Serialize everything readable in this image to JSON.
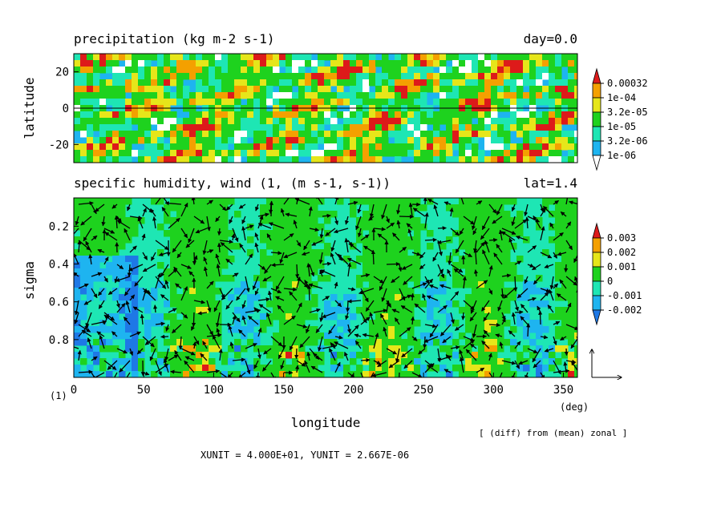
{
  "chart_data": [
    {
      "type": "heatmap",
      "title": "precipitation (kg m-2 s-1)",
      "time_label": "day=0.0",
      "ylabel": "latitude",
      "xlim": [
        0,
        360
      ],
      "ylim": [
        -30,
        30
      ],
      "yticks": [
        "20",
        "0",
        "-20"
      ],
      "ytick_values": [
        20,
        0,
        -20
      ],
      "reference_line_y": 0,
      "colorbar": {
        "labels": [
          "0.00032",
          "1e-04",
          "3.2e-05",
          "1e-05",
          "3.2e-06",
          "1e-06"
        ],
        "colors": [
          "#dd1a1a",
          "#f4a000",
          "#e6e61a",
          "#1ed21e",
          "#1ee6b4",
          "#1eb4f0",
          "#ffffff"
        ]
      }
    },
    {
      "type": "heatmap",
      "title": "specific humidity, wind (1, (m s-1, s-1))",
      "slice_label": "lat=1.4",
      "xlabel": "longitude",
      "ylabel": "sigma",
      "xlim": [
        0,
        360
      ],
      "ylim": [
        1.0,
        0.05
      ],
      "xticks": [
        "0",
        "50",
        "100",
        "150",
        "200",
        "250",
        "300",
        "350"
      ],
      "xtick_values": [
        0,
        50,
        100,
        150,
        200,
        250,
        300,
        350
      ],
      "yticks": [
        "0.2",
        "0.4",
        "0.6",
        "0.8"
      ],
      "ytick_values": [
        0.2,
        0.4,
        0.6,
        0.8
      ],
      "x_unit_label": "(deg)",
      "y_unit_label": "(1)",
      "colorbar": {
        "labels": [
          "0.003",
          "0.002",
          "0.001",
          "0",
          "-0.001",
          "-0.002"
        ],
        "colors": [
          "#dd1a1a",
          "#f4a000",
          "#e6e61a",
          "#1ed21e",
          "#1ee6b4",
          "#1eb4f0",
          "#1e78e6"
        ]
      },
      "vector_units": "XUNIT = 4.000E+01, YUNIT = 2.667E-06",
      "note": "[ (diff) from (mean) zonal ]"
    }
  ]
}
